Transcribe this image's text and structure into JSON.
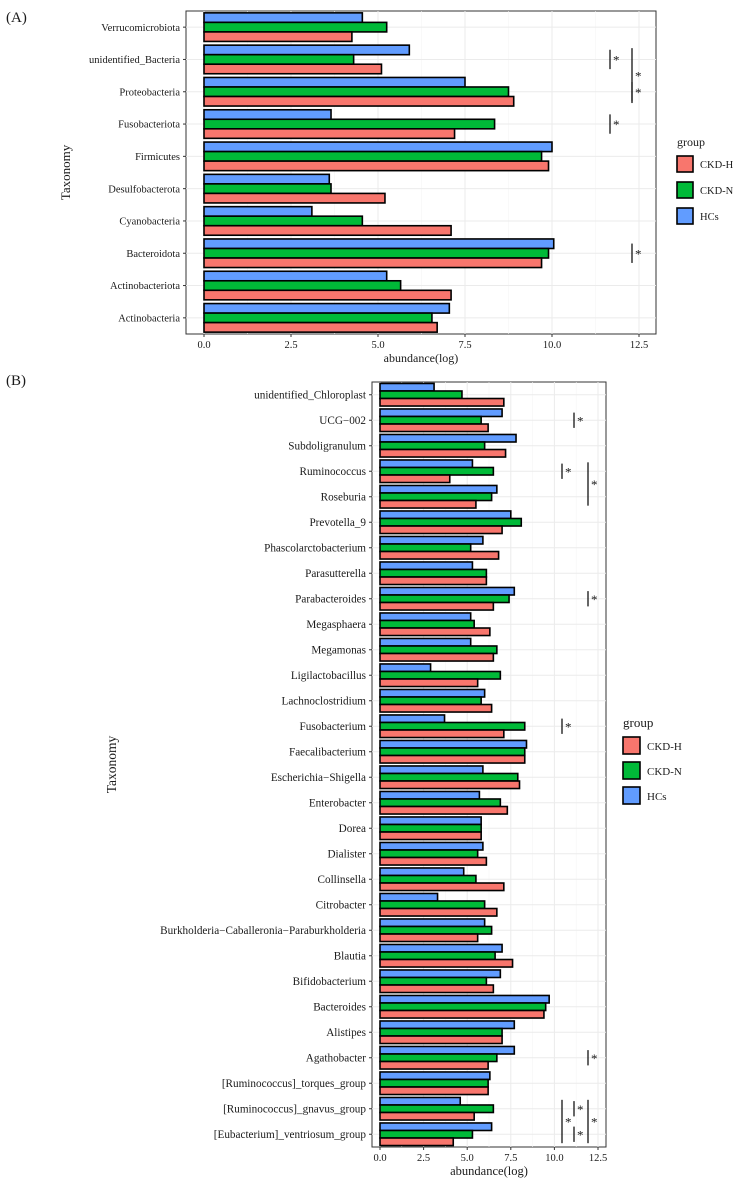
{
  "colors": {
    "CKD-H": "#F8766D",
    "CKD-N": "#00BA38",
    "HCs": "#619CFF"
  },
  "legend_title": "group",
  "sig_mark": "*",
  "chart_data": [
    {
      "panel_label": "(A)",
      "type": "bar",
      "orientation": "horizontal",
      "xlabel": "abundance(log)",
      "ylabel": "Taxonomy",
      "xlim": [
        0,
        12.5
      ],
      "xticks": [
        0.0,
        2.5,
        5.0,
        7.5,
        10.0,
        12.5
      ],
      "xtick_labels": [
        "0.0",
        "2.5",
        "5.0",
        "7.5",
        "10.0",
        "12.5"
      ],
      "grid": true,
      "legend_position": "right",
      "categories": [
        "Verrucomicrobiota",
        "unidentified_Bacteria",
        "Proteobacteria",
        "Fusobacteriota",
        "Firmicutes",
        "Desulfobacterota",
        "Cyanobacteria",
        "Bacteroidota",
        "Actinobacteriota",
        "Actinobacteria"
      ],
      "series": [
        {
          "name": "HCs",
          "values": [
            4.55,
            5.9,
            7.5,
            3.65,
            10.0,
            3.6,
            3.1,
            10.05,
            5.25,
            7.05
          ]
        },
        {
          "name": "CKD-N",
          "values": [
            5.25,
            4.3,
            8.75,
            8.35,
            9.7,
            3.65,
            4.55,
            9.9,
            5.65,
            6.55
          ]
        },
        {
          "name": "CKD-H",
          "values": [
            4.25,
            5.1,
            8.9,
            7.2,
            9.9,
            5.2,
            7.1,
            9.7,
            7.1,
            6.7
          ]
        }
      ],
      "significance": [
        {
          "categories": [
            "unidentified_Bacteria"
          ],
          "label": "*"
        },
        {
          "categories": [
            "unidentified_Bacteria",
            "Proteobacteria"
          ],
          "label": "*"
        },
        {
          "categories": [
            "Proteobacteria"
          ],
          "label": "*"
        },
        {
          "categories": [
            "Fusobacteriota"
          ],
          "label": "*"
        },
        {
          "categories": [
            "Bacteroidota"
          ],
          "label": "*"
        }
      ]
    },
    {
      "panel_label": "(B)",
      "type": "bar",
      "orientation": "horizontal",
      "xlabel": "abundance(log)",
      "ylabel": "Taxonomy",
      "xlim": [
        0,
        12.5
      ],
      "xticks": [
        0.0,
        2.5,
        5.0,
        7.5,
        10.0,
        12.5
      ],
      "xtick_labels": [
        "0.0",
        "2.5",
        "5.0",
        "7.5",
        "10.0",
        "12.5"
      ],
      "grid": true,
      "legend_position": "right",
      "categories": [
        "unidentified_Chloroplast",
        "UCG−002",
        "Subdoligranulum",
        "Ruminococcus",
        "Roseburia",
        "Prevotella_9",
        "Phascolarctobacterium",
        "Parasutterella",
        "Parabacteroides",
        "Megasphaera",
        "Megamonas",
        "Ligilactobacillus",
        "Lachnoclostridium",
        "Fusobacterium",
        "Faecalibacterium",
        "Escherichia−Shigella",
        "Enterobacter",
        "Dorea",
        "Dialister",
        "Collinsella",
        "Citrobacter",
        "Burkholderia−Caballeronia−Paraburkholderia",
        "Blautia",
        "Bifidobacterium",
        "Bacteroides",
        "Alistipes",
        "Agathobacter",
        "[Ruminococcus]_torques_group",
        "[Ruminococcus]_gnavus_group",
        "[Eubacterium]_ventriosum_group"
      ],
      "series": [
        {
          "name": "HCs",
          "values": [
            3.1,
            7.0,
            7.8,
            5.3,
            6.7,
            7.5,
            5.9,
            5.3,
            7.7,
            5.2,
            5.2,
            2.9,
            6.0,
            3.7,
            8.4,
            5.9,
            5.7,
            5.8,
            5.9,
            4.8,
            3.3,
            6.0,
            7.0,
            6.9,
            9.7,
            7.7,
            7.7,
            6.3,
            4.6,
            6.4
          ]
        },
        {
          "name": "CKD-N",
          "values": [
            4.7,
            5.8,
            6.0,
            6.5,
            6.4,
            8.1,
            5.2,
            6.1,
            7.4,
            5.4,
            6.7,
            6.9,
            5.8,
            8.3,
            8.3,
            7.9,
            6.9,
            5.8,
            5.6,
            5.5,
            6.0,
            6.4,
            6.6,
            6.1,
            9.5,
            7.0,
            6.7,
            6.2,
            6.5,
            5.3
          ]
        },
        {
          "name": "CKD-H",
          "values": [
            7.1,
            6.2,
            7.2,
            4.0,
            5.5,
            7.0,
            6.8,
            6.1,
            6.5,
            6.3,
            6.5,
            5.6,
            6.4,
            7.1,
            8.3,
            8.0,
            7.3,
            5.8,
            6.1,
            7.1,
            6.7,
            5.6,
            7.6,
            6.5,
            9.4,
            7.0,
            6.2,
            6.2,
            5.4,
            4.2
          ]
        }
      ],
      "significance": [
        {
          "categories": [
            "UCG−002"
          ],
          "label": "*"
        },
        {
          "categories": [
            "Ruminococcus"
          ],
          "label": "*"
        },
        {
          "categories": [
            "Ruminococcus",
            "Roseburia"
          ],
          "label": "*"
        },
        {
          "categories": [
            "Parabacteroides"
          ],
          "label": "*"
        },
        {
          "categories": [
            "Fusobacterium"
          ],
          "label": "*"
        },
        {
          "categories": [
            "Agathobacter"
          ],
          "label": "*"
        },
        {
          "categories": [
            "[Ruminococcus]_gnavus_group"
          ],
          "label": "*"
        },
        {
          "categories": [
            "[Ruminococcus]_gnavus_group",
            "[Eubacterium]_ventriosum_group"
          ],
          "label": "*"
        },
        {
          "categories": [
            "[Eubacterium]_ventriosum_group"
          ],
          "label": "*"
        },
        {
          "categories": [
            "[Ruminococcus]_gnavus_group",
            "[Eubacterium]_ventriosum_group"
          ],
          "label": "*"
        }
      ]
    }
  ]
}
